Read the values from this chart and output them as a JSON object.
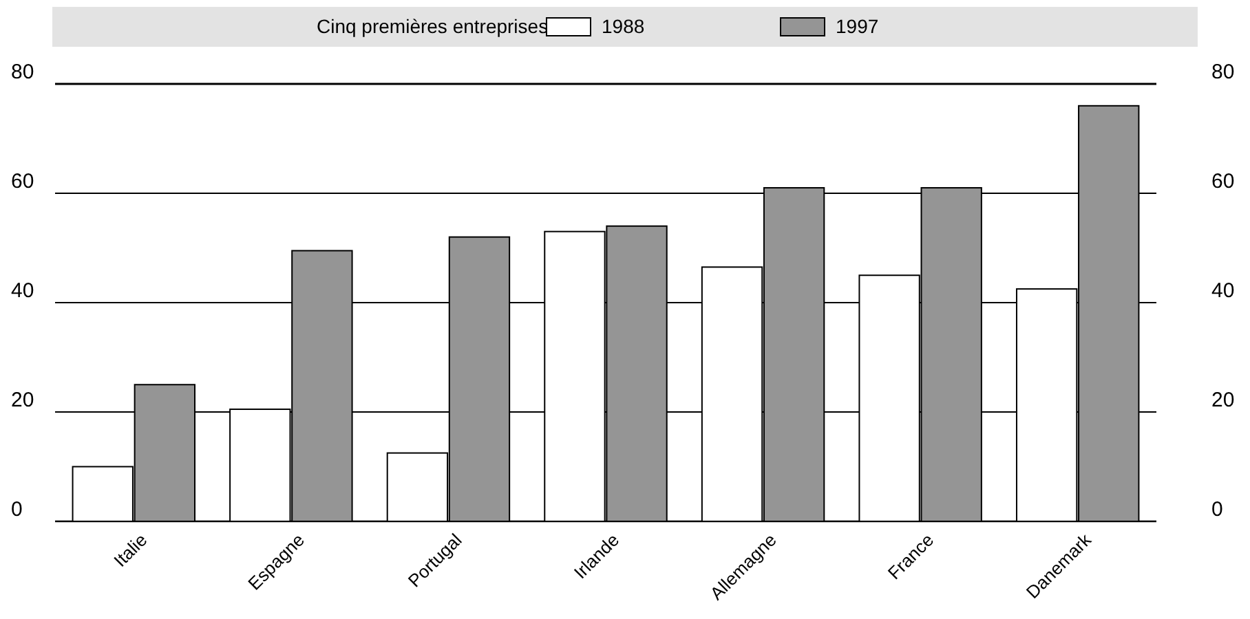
{
  "chart_data": {
    "type": "bar",
    "legend_title": "Cinq premières entreprises",
    "categories": [
      "Italie",
      "Espagne",
      "Portugal",
      "Irlande",
      "Allemagne",
      "France",
      "Danemark"
    ],
    "series": [
      {
        "name": "1988",
        "color": "#ffffff",
        "values": [
          10,
          20.5,
          12.5,
          53,
          46.5,
          45,
          42.5
        ]
      },
      {
        "name": "1997",
        "color": "#959595",
        "values": [
          25,
          49.5,
          52,
          54,
          61,
          61,
          76
        ]
      }
    ],
    "ylim": [
      0,
      80
    ],
    "yticks": [
      0,
      20,
      40,
      60,
      80
    ],
    "y2lim": [
      0,
      80
    ],
    "y2ticks": [
      0,
      20,
      40,
      60,
      80
    ],
    "grid": "y",
    "legend": "top"
  }
}
